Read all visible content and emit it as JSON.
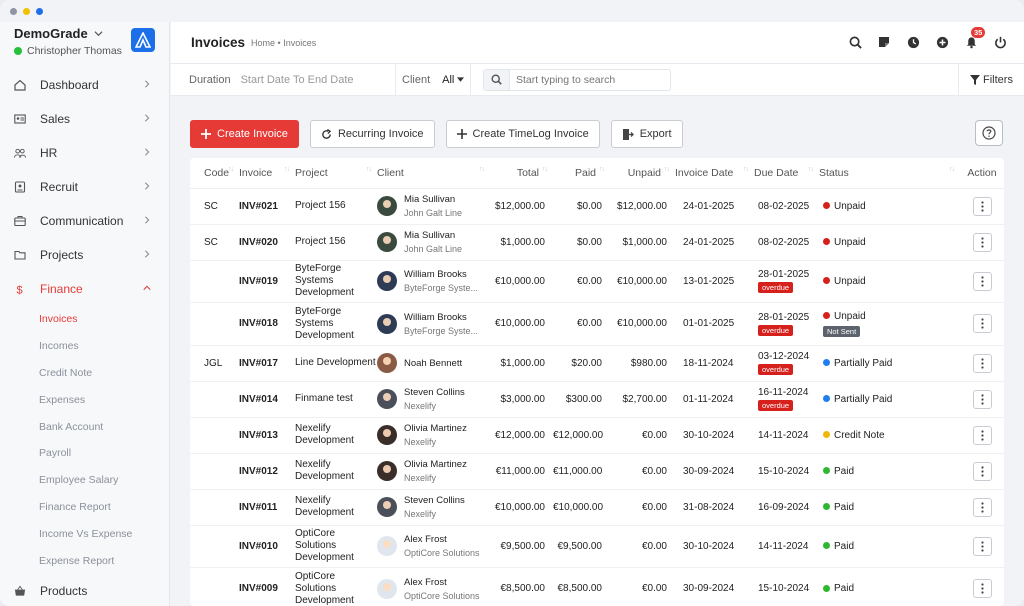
{
  "app": {
    "company": "DemoGrade",
    "user": "Christopher Thomas"
  },
  "sidebar": {
    "items": [
      {
        "label": "Dashboard",
        "icon": "home-icon"
      },
      {
        "label": "Sales",
        "icon": "id-card-icon"
      },
      {
        "label": "HR",
        "icon": "users-icon"
      },
      {
        "label": "Recruit",
        "icon": "badge-icon"
      },
      {
        "label": "Communication",
        "icon": "briefcase-icon"
      },
      {
        "label": "Projects",
        "icon": "folder-icon"
      },
      {
        "label": "Finance",
        "icon": "dollar-icon",
        "expanded": true
      }
    ],
    "finance_sub": [
      "Invoices",
      "Incomes",
      "Credit Note",
      "Expenses",
      "Bank Account",
      "Payroll",
      "Employee Salary",
      "Finance Report",
      "Income Vs Expense",
      "Expense Report"
    ],
    "bottom": {
      "label": "Products",
      "icon": "basket-icon"
    }
  },
  "header": {
    "title": "Invoices",
    "breadcrumb": "Home • Invoices",
    "notifications": "35"
  },
  "filters": {
    "duration_label": "Duration",
    "duration_value": "Start Date To End Date",
    "client_label": "Client",
    "client_value": "All",
    "search_placeholder": "Start typing to search",
    "filters_label": "Filters"
  },
  "actions": {
    "create": "Create Invoice",
    "recurring": "Recurring Invoice",
    "timelog": "Create TimeLog Invoice",
    "export": "Export"
  },
  "table": {
    "columns": [
      "Code",
      "Invoice",
      "Project",
      "Client",
      "Total",
      "Paid",
      "Unpaid",
      "Invoice Date",
      "Due Date",
      "Status",
      "Action"
    ],
    "rows": [
      {
        "code": "SC",
        "invoice": "INV#021",
        "project": "Project 156",
        "client": "Mia Sullivan",
        "company": "John Galt Line",
        "total": "$12,000.00",
        "paid": "$0.00",
        "unpaid": "$12,000.00",
        "inv_date": "24-01-2025",
        "due_date": "08-02-2025",
        "overdue": "",
        "status": "Unpaid",
        "status_color": "#d6201c",
        "tag": ""
      },
      {
        "code": "SC",
        "invoice": "INV#020",
        "project": "Project 156",
        "client": "Mia Sullivan",
        "company": "John Galt Line",
        "total": "$1,000.00",
        "paid": "$0.00",
        "unpaid": "$1,000.00",
        "inv_date": "24-01-2025",
        "due_date": "08-02-2025",
        "overdue": "",
        "status": "Unpaid",
        "status_color": "#d6201c",
        "tag": ""
      },
      {
        "code": "",
        "invoice": "INV#019",
        "project": "ByteForge Systems Development",
        "client": "William Brooks",
        "company": "ByteForge Syste...",
        "total": "€10,000.00",
        "paid": "€0.00",
        "unpaid": "€10,000.00",
        "inv_date": "13-01-2025",
        "due_date": "28-01-2025",
        "overdue": "overdue",
        "status": "Unpaid",
        "status_color": "#d6201c",
        "tag": ""
      },
      {
        "code": "",
        "invoice": "INV#018",
        "project": "ByteForge Systems Development",
        "client": "William Brooks",
        "company": "ByteForge Syste...",
        "total": "€10,000.00",
        "paid": "€0.00",
        "unpaid": "€10,000.00",
        "inv_date": "01-01-2025",
        "due_date": "28-01-2025",
        "overdue": "overdue",
        "status": "Unpaid",
        "status_color": "#d6201c",
        "tag": "Not Sent"
      },
      {
        "code": "JGL",
        "invoice": "INV#017",
        "project": "Line Development",
        "client": "Noah Bennett",
        "company": "",
        "total": "$1,000.00",
        "paid": "$20.00",
        "unpaid": "$980.00",
        "inv_date": "18-11-2024",
        "due_date": "03-12-2024",
        "overdue": "overdue",
        "status": "Partially Paid",
        "status_color": "#1f7ef0",
        "tag": ""
      },
      {
        "code": "",
        "invoice": "INV#014",
        "project": "Finmane test",
        "client": "Steven Collins",
        "company": "Nexelify",
        "total": "$3,000.00",
        "paid": "$300.00",
        "unpaid": "$2,700.00",
        "inv_date": "01-11-2024",
        "due_date": "16-11-2024",
        "overdue": "overdue",
        "status": "Partially Paid",
        "status_color": "#1f7ef0",
        "tag": ""
      },
      {
        "code": "",
        "invoice": "INV#013",
        "project": "Nexelify Development",
        "client": "Olivia Martinez",
        "company": "Nexelify",
        "total": "€12,000.00",
        "paid": "€12,000.00",
        "unpaid": "€0.00",
        "inv_date": "30-10-2024",
        "due_date": "14-11-2024",
        "overdue": "",
        "status": "Credit Note",
        "status_color": "#f2b705",
        "tag": ""
      },
      {
        "code": "",
        "invoice": "INV#012",
        "project": "Nexelify Development",
        "client": "Olivia Martinez",
        "company": "Nexelify",
        "total": "€11,000.00",
        "paid": "€11,000.00",
        "unpaid": "€0.00",
        "inv_date": "30-09-2024",
        "due_date": "15-10-2024",
        "overdue": "",
        "status": "Paid",
        "status_color": "#2eb82e",
        "tag": ""
      },
      {
        "code": "",
        "invoice": "INV#011",
        "project": "Nexelify Development",
        "client": "Steven Collins",
        "company": "Nexelify",
        "total": "€10,000.00",
        "paid": "€10,000.00",
        "unpaid": "€0.00",
        "inv_date": "31-08-2024",
        "due_date": "16-09-2024",
        "overdue": "",
        "status": "Paid",
        "status_color": "#2eb82e",
        "tag": ""
      },
      {
        "code": "",
        "invoice": "INV#010",
        "project": "OptiCore Solutions Development",
        "client": "Alex Frost",
        "company": "OptiCore Solutions",
        "total": "€9,500.00",
        "paid": "€9,500.00",
        "unpaid": "€0.00",
        "inv_date": "30-10-2024",
        "due_date": "14-11-2024",
        "overdue": "",
        "status": "Paid",
        "status_color": "#2eb82e",
        "tag": ""
      },
      {
        "code": "",
        "invoice": "INV#009",
        "project": "OptiCore Solutions Development",
        "client": "Alex Frost",
        "company": "OptiCore Solutions",
        "total": "€8,500.00",
        "paid": "€8,500.00",
        "unpaid": "€0.00",
        "inv_date": "30-09-2024",
        "due_date": "15-10-2024",
        "overdue": "",
        "status": "Paid",
        "status_color": "#2eb82e",
        "tag": ""
      }
    ]
  }
}
